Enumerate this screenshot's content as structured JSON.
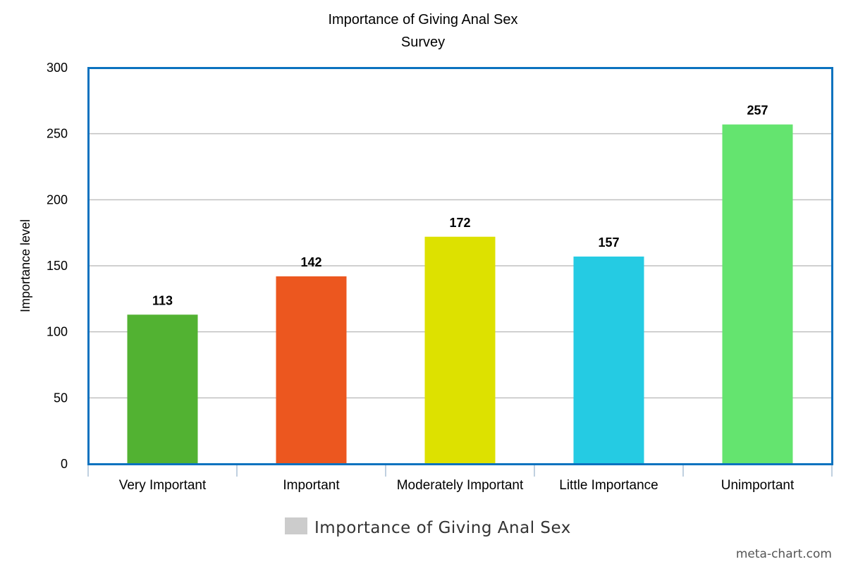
{
  "chart_data": {
    "type": "bar",
    "title": "Importance of Giving Anal Sex",
    "subtitle": "Survey",
    "xlabel": "",
    "ylabel": "Importance level",
    "ylim": [
      0,
      300
    ],
    "yticks": [
      "0",
      "50",
      "100",
      "150",
      "200",
      "250",
      "300"
    ],
    "grid": true,
    "legend_position": "bottom",
    "categories": [
      "Very Important",
      "Important",
      "Moderately Important",
      "Little Importance",
      "Unimportant"
    ],
    "series": [
      {
        "name": "Importance of Giving Anal Sex",
        "values": [
          113,
          142,
          172,
          157,
          257
        ],
        "data_labels": [
          "113",
          "142",
          "172",
          "157",
          "257"
        ]
      }
    ],
    "bar_colors": [
      "#52b232",
      "#ec571f",
      "#dde100",
      "#25cbe3",
      "#64e46f"
    ],
    "legend_color": "#cccccc",
    "frame_color": "#0b72bf",
    "grid_color": "#c0c0c0"
  },
  "credit": "meta-chart.com"
}
